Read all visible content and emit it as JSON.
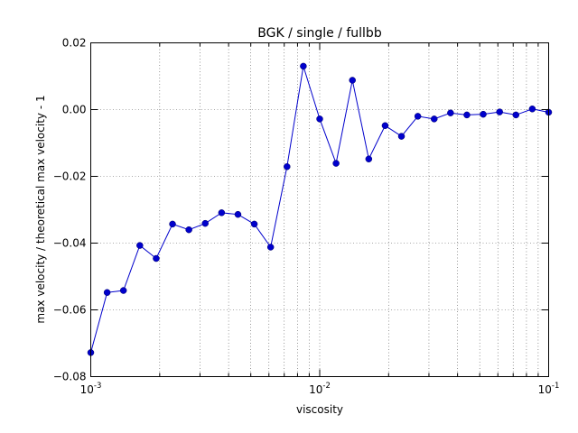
{
  "chart_data": {
    "type": "line",
    "title": "BGK / single / fullbb",
    "xlabel": "viscosity",
    "ylabel": "max velocity / theoretical max velocity - 1",
    "xscale": "log",
    "xlim": [
      0.001,
      0.1
    ],
    "ylim": [
      -0.08,
      0.02
    ],
    "grid": true,
    "x_ticks": [
      {
        "base": "10",
        "exp": "-3",
        "value": 0.001
      },
      {
        "base": "10",
        "exp": "-2",
        "value": 0.01
      },
      {
        "base": "10",
        "exp": "-1",
        "value": 0.1
      }
    ],
    "y_ticks": [
      {
        "label": "0.02",
        "value": 0.02
      },
      {
        "label": "0.00",
        "value": 0.0
      },
      {
        "label": "−0.02",
        "value": -0.02
      },
      {
        "label": "−0.04",
        "value": -0.04
      },
      {
        "label": "−0.06",
        "value": -0.06
      },
      {
        "label": "−0.08",
        "value": -0.08
      }
    ],
    "series": [
      {
        "color": "#0000cc",
        "marker": "circle",
        "x": [
          0.001,
          0.001179,
          0.001389,
          0.001638,
          0.001931,
          0.002276,
          0.002683,
          0.003162,
          0.003728,
          0.004394,
          0.00518,
          0.006105,
          0.007197,
          0.008483,
          0.01,
          0.011788,
          0.013895,
          0.016379,
          0.019307,
          0.022758,
          0.026827,
          0.031623,
          0.037276,
          0.04394,
          0.051795,
          0.061054,
          0.071969,
          0.084834,
          0.1
        ],
        "y": [
          -0.0728,
          -0.0548,
          -0.0542,
          -0.0407,
          -0.0446,
          -0.0343,
          -0.036,
          -0.0341,
          -0.0309,
          -0.0314,
          -0.0343,
          -0.0412,
          -0.0171,
          0.013,
          -0.0028,
          -0.0161,
          0.0088,
          -0.0148,
          -0.0048,
          -0.008,
          -0.002,
          -0.0028,
          -0.001,
          -0.0016,
          -0.0014,
          -0.0007,
          -0.0016,
          0.0002,
          -0.0008
        ]
      }
    ]
  }
}
